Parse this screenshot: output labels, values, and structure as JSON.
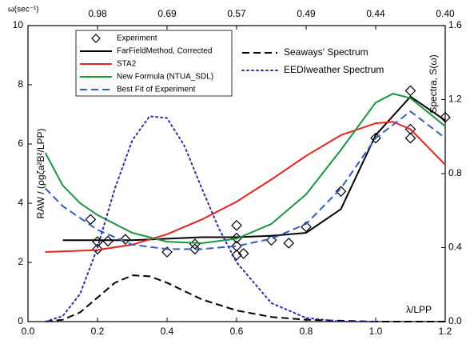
{
  "chart_data": {
    "type": "line",
    "xlabel": "λ/LPP",
    "ylabel": "RAW / (ρgζa²B²/LPP)",
    "y2label": "Spectra, S(ω)",
    "x2label": "ω(sec⁻¹)",
    "xlim": [
      0,
      1.2
    ],
    "xticks": [
      {
        "value": 0,
        "label": "0.0"
      },
      0.2,
      0.4,
      0.6,
      0.8,
      {
        "value": 1,
        "label": "1.0"
      },
      1.2
    ],
    "x2ticks": [
      {
        "value": 0.2,
        "label": "0.98"
      },
      {
        "value": 0.4,
        "label": "0.69"
      },
      {
        "value": 0.6,
        "label": "0.57"
      },
      {
        "value": 0.8,
        "label": "0.49"
      },
      {
        "value": 1,
        "label": "0.44"
      },
      {
        "value": 1.2,
        "label": "0.40"
      }
    ],
    "ylim": [
      0,
      10
    ],
    "yticks": [
      0,
      2,
      4,
      6,
      8,
      10
    ],
    "y2lim": [
      0,
      1.6
    ],
    "y2ticks": [
      {
        "value": 0,
        "label": "0.0"
      },
      0.4,
      0.8,
      1.2,
      1.6
    ],
    "series": [
      {
        "name": "Experiment",
        "type": "scatter",
        "marker": "diamond",
        "color": "#000000",
        "x": [
          0.18,
          0.2,
          0.2,
          0.23,
          0.28,
          0.4,
          0.48,
          0.48,
          0.6,
          0.6,
          0.6,
          0.6,
          0.62,
          0.7,
          0.75,
          0.8,
          0.9,
          1.0,
          1.1,
          1.1,
          1.1,
          1.2
        ],
        "values": [
          3.45,
          2.45,
          2.7,
          2.72,
          2.78,
          2.35,
          2.45,
          2.62,
          3.25,
          2.82,
          2.55,
          2.25,
          2.3,
          2.75,
          2.65,
          3.2,
          4.4,
          6.2,
          7.8,
          6.5,
          6.2,
          6.9
        ]
      },
      {
        "name": "FarFieldMethod, Corrected",
        "color": "#000000",
        "dash": "solid",
        "x": [
          0.1,
          0.2,
          0.3,
          0.4,
          0.5,
          0.6,
          0.7,
          0.8,
          0.9,
          1.0,
          1.1,
          1.2
        ],
        "values": [
          2.75,
          2.75,
          2.75,
          2.8,
          2.85,
          2.85,
          2.9,
          3.0,
          3.8,
          6.3,
          7.6,
          6.8
        ]
      },
      {
        "name": "STA2",
        "color": "#e8231b",
        "dash": "solid",
        "x": [
          0.05,
          0.1,
          0.2,
          0.3,
          0.4,
          0.5,
          0.6,
          0.7,
          0.8,
          0.9,
          1.0,
          1.05,
          1.1,
          1.2
        ],
        "values": [
          2.35,
          2.37,
          2.42,
          2.6,
          2.95,
          3.45,
          4.05,
          4.8,
          5.6,
          6.3,
          6.7,
          6.75,
          6.5,
          5.3
        ]
      },
      {
        "name": "New Formula (NTUA_SDL)",
        "color": "#1a9641",
        "dash": "solid",
        "x": [
          0.05,
          0.1,
          0.15,
          0.2,
          0.3,
          0.4,
          0.5,
          0.6,
          0.7,
          0.8,
          0.9,
          1.0,
          1.05,
          1.1,
          1.2
        ],
        "values": [
          5.7,
          4.6,
          4.0,
          3.6,
          3.0,
          2.7,
          2.65,
          2.8,
          3.3,
          4.3,
          5.8,
          7.4,
          7.7,
          7.55,
          6.6
        ]
      },
      {
        "name": "Best Fit of Experiment",
        "color": "#2f5fbf",
        "dash": "dash",
        "x": [
          0.05,
          0.1,
          0.2,
          0.3,
          0.4,
          0.5,
          0.6,
          0.7,
          0.8,
          0.9,
          1.0,
          1.1,
          1.2
        ],
        "values": [
          4.5,
          3.9,
          3.1,
          2.6,
          2.45,
          2.45,
          2.55,
          2.8,
          3.3,
          4.5,
          6.2,
          7.1,
          6.2
        ]
      },
      {
        "name": "Seaways' Spectrum",
        "color": "#000000",
        "dash": "dash",
        "axis": "y2",
        "x": [
          0.05,
          0.1,
          0.15,
          0.2,
          0.25,
          0.3,
          0.35,
          0.4,
          0.5,
          0.6,
          0.7,
          0.8,
          0.9,
          1.0,
          1.2
        ],
        "values": [
          0,
          0.01,
          0.05,
          0.13,
          0.21,
          0.25,
          0.245,
          0.21,
          0.12,
          0.06,
          0.025,
          0.01,
          0.005,
          0,
          0
        ]
      },
      {
        "name": "EEDIweather Spectrum",
        "color": "#2b2bb8",
        "dash": "dot",
        "axis": "y2",
        "x": [
          0.05,
          0.1,
          0.15,
          0.2,
          0.25,
          0.3,
          0.35,
          0.4,
          0.45,
          0.5,
          0.55,
          0.6,
          0.7,
          0.8,
          0.9,
          1.0
        ],
        "values": [
          0,
          0.03,
          0.15,
          0.4,
          0.72,
          0.98,
          1.11,
          1.1,
          0.95,
          0.72,
          0.5,
          0.32,
          0.1,
          0.02,
          0,
          0
        ]
      }
    ]
  }
}
